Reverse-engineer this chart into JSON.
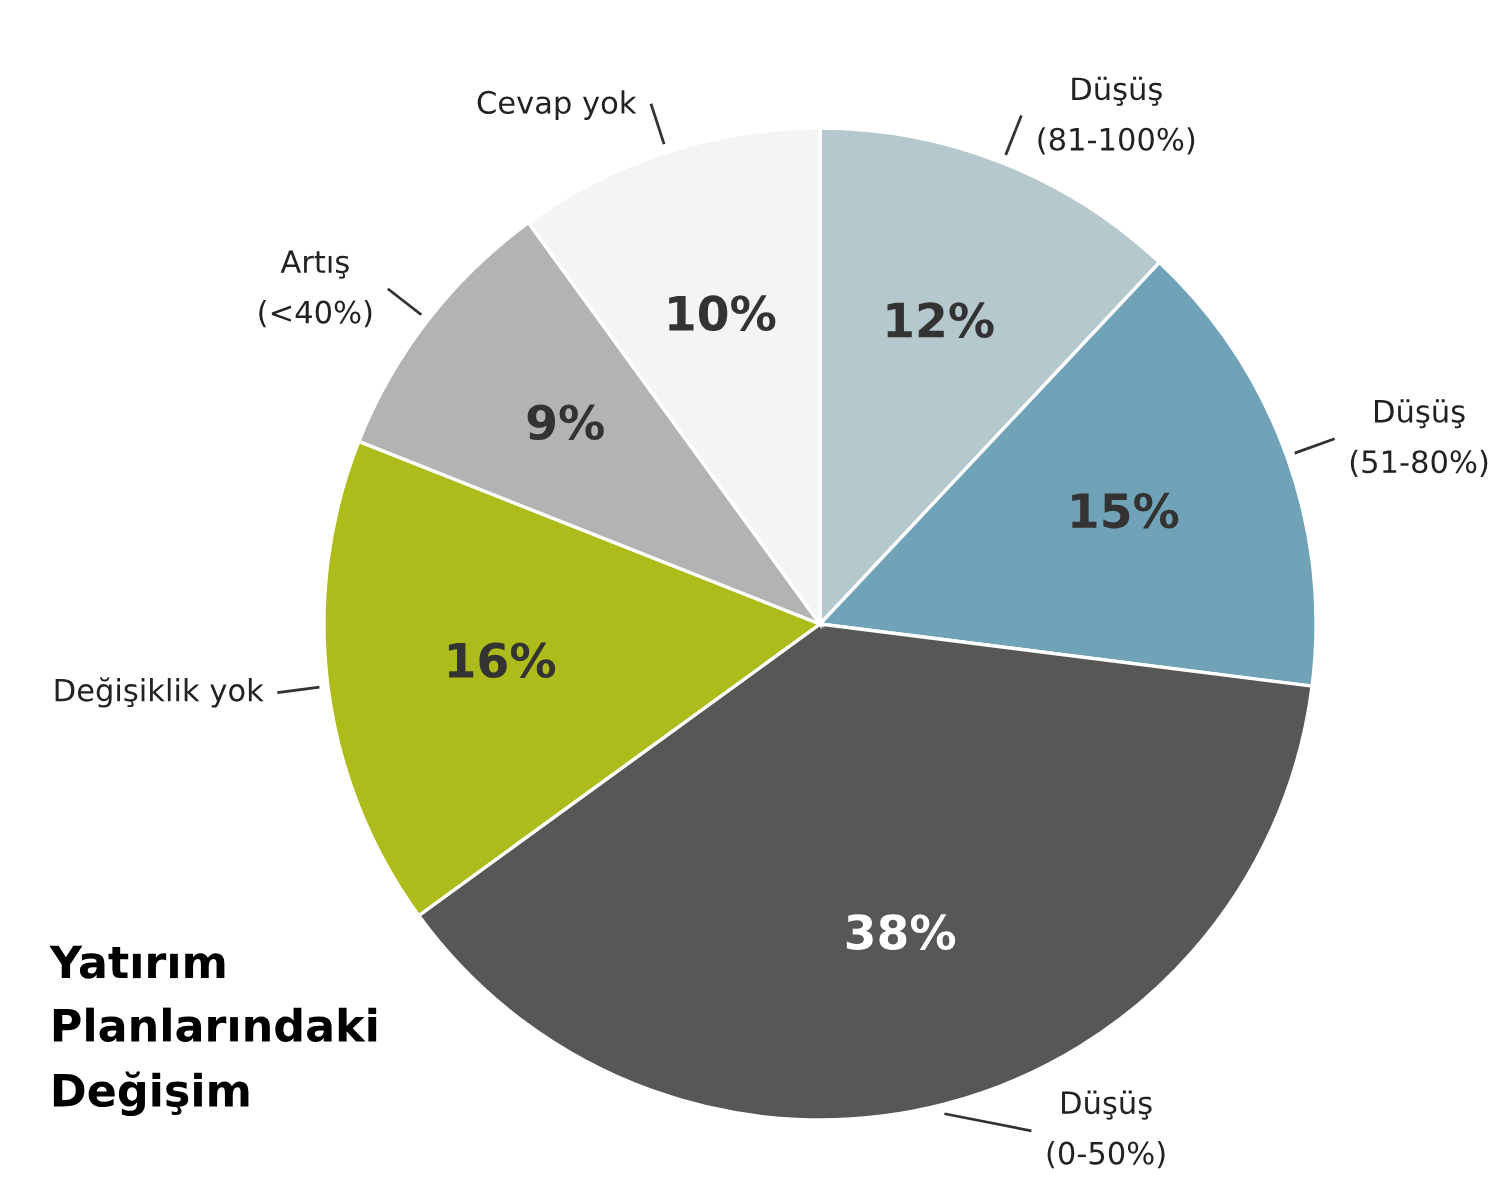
{
  "chart_data": {
    "type": "pie",
    "title": "Yatırım\nPlanlarındaki\nDeğişim",
    "categories": [
      "Düşüş\n(81-100%)",
      "Düşüş\n(51-80%)",
      "Düşüş\n(0-50%)",
      "Değişiklik yok",
      "Artış\n(<40%)",
      "Cevap yok"
    ],
    "values": [
      12,
      15,
      38,
      16,
      9,
      10
    ],
    "value_labels": [
      "12%",
      "15%",
      "38%",
      "16%",
      "9%",
      "10%"
    ],
    "colors": [
      "#b5c8cd",
      "#70a3b8",
      "#575756",
      "#aebc1b",
      "#b3b3b3",
      "#f4f4f4"
    ]
  }
}
